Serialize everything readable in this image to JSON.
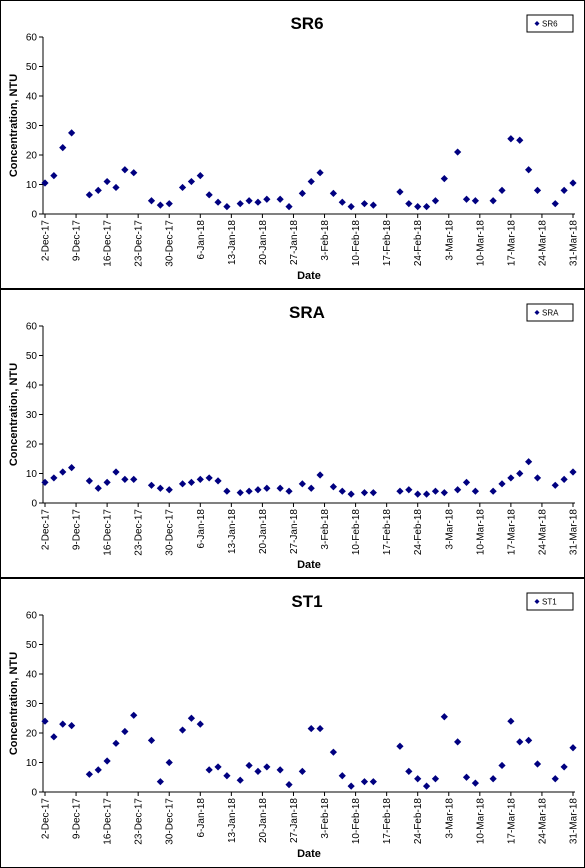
{
  "chart_data": [
    {
      "type": "scatter",
      "title": "SR6",
      "xlabel": "Date",
      "ylabel": "Concentration, NTU",
      "x": [
        "2017-12-02",
        "2017-12-04",
        "2017-12-06",
        "2017-12-08",
        "2017-12-12",
        "2017-12-14",
        "2017-12-16",
        "2017-12-18",
        "2017-12-20",
        "2017-12-22",
        "2017-12-26",
        "2017-12-28",
        "2017-12-30",
        "2018-01-02",
        "2018-01-04",
        "2018-01-06",
        "2018-01-08",
        "2018-01-10",
        "2018-01-12",
        "2018-01-15",
        "2018-01-17",
        "2018-01-19",
        "2018-01-21",
        "2018-01-24",
        "2018-01-26",
        "2018-01-29",
        "2018-01-31",
        "2018-02-02",
        "2018-02-05",
        "2018-02-07",
        "2018-02-09",
        "2018-02-12",
        "2018-02-14",
        "2018-02-20",
        "2018-02-22",
        "2018-02-24",
        "2018-02-26",
        "2018-02-28",
        "2018-03-02",
        "2018-03-05",
        "2018-03-07",
        "2018-03-09",
        "2018-03-13",
        "2018-03-15",
        "2018-03-17",
        "2018-03-19",
        "2018-03-21",
        "2018-03-23",
        "2018-03-27",
        "2018-03-29",
        "2018-03-31"
      ],
      "series": [
        {
          "name": "SR6",
          "color": "#000080",
          "values": [
            10.5,
            13,
            22.5,
            27.5,
            6.5,
            8,
            11,
            9,
            15,
            14,
            4.5,
            3,
            3.5,
            9,
            11,
            13,
            6.5,
            4,
            2.5,
            3.5,
            4.5,
            4,
            5,
            5,
            2.5,
            7,
            11,
            14,
            7,
            4,
            2.5,
            3.5,
            3,
            7.5,
            3.5,
            2.5,
            2.5,
            4.5,
            12,
            21,
            5,
            4.5,
            4.5,
            8,
            25.5,
            25,
            15,
            8,
            3.5,
            8,
            10.5
          ]
        }
      ],
      "xlim": [
        "2017-12-02",
        "2018-03-31"
      ],
      "xticks": [
        {
          "value": "2017-12-02",
          "label": "2-Dec-17"
        },
        {
          "value": "2017-12-09",
          "label": "9-Dec-17"
        },
        {
          "value": "2017-12-16",
          "label": "16-Dec-17"
        },
        {
          "value": "2017-12-23",
          "label": "23-Dec-17"
        },
        {
          "value": "2017-12-30",
          "label": "30-Dec-17"
        },
        {
          "value": "2018-01-06",
          "label": "6-Jan-18"
        },
        {
          "value": "2018-01-13",
          "label": "13-Jan-18"
        },
        {
          "value": "2018-01-20",
          "label": "20-Jan-18"
        },
        {
          "value": "2018-01-27",
          "label": "27-Jan-18"
        },
        {
          "value": "2018-02-03",
          "label": "3-Feb-18"
        },
        {
          "value": "2018-02-10",
          "label": "10-Feb-18"
        },
        {
          "value": "2018-02-17",
          "label": "17-Feb-18"
        },
        {
          "value": "2018-02-24",
          "label": "24-Feb-18"
        },
        {
          "value": "2018-03-03",
          "label": "3-Mar-18"
        },
        {
          "value": "2018-03-10",
          "label": "10-Mar-18"
        },
        {
          "value": "2018-03-17",
          "label": "17-Mar-18"
        },
        {
          "value": "2018-03-24",
          "label": "24-Mar-18"
        },
        {
          "value": "2018-03-31",
          "label": "31-Mar-18"
        }
      ],
      "ylim": [
        0,
        60
      ],
      "yticks": [
        0,
        10,
        20,
        30,
        40,
        50,
        60
      ],
      "legend": "top-right"
    },
    {
      "type": "scatter",
      "title": "SRA",
      "xlabel": "Date",
      "ylabel": "Concentration, NTU",
      "x": [
        "2017-12-02",
        "2017-12-04",
        "2017-12-06",
        "2017-12-08",
        "2017-12-12",
        "2017-12-14",
        "2017-12-16",
        "2017-12-18",
        "2017-12-20",
        "2017-12-22",
        "2017-12-26",
        "2017-12-28",
        "2017-12-30",
        "2018-01-02",
        "2018-01-04",
        "2018-01-06",
        "2018-01-08",
        "2018-01-10",
        "2018-01-12",
        "2018-01-15",
        "2018-01-17",
        "2018-01-19",
        "2018-01-21",
        "2018-01-24",
        "2018-01-26",
        "2018-01-29",
        "2018-01-31",
        "2018-02-02",
        "2018-02-05",
        "2018-02-07",
        "2018-02-09",
        "2018-02-12",
        "2018-02-14",
        "2018-02-20",
        "2018-02-22",
        "2018-02-24",
        "2018-02-26",
        "2018-02-28",
        "2018-03-02",
        "2018-03-05",
        "2018-03-07",
        "2018-03-09",
        "2018-03-13",
        "2018-03-15",
        "2018-03-17",
        "2018-03-19",
        "2018-03-21",
        "2018-03-23",
        "2018-03-27",
        "2018-03-29",
        "2018-03-31"
      ],
      "series": [
        {
          "name": "SRA",
          "color": "#000080",
          "values": [
            7,
            8.5,
            10.5,
            12,
            7.5,
            5,
            7,
            10.5,
            8,
            8,
            6,
            5,
            4.5,
            6.5,
            7,
            8,
            8.5,
            7.5,
            4,
            3.5,
            4,
            4.5,
            5,
            5,
            4,
            6.5,
            5,
            9.5,
            5.5,
            4,
            3,
            3.5,
            3.5,
            4,
            4.5,
            3,
            3,
            4,
            3.5,
            4.5,
            7,
            4,
            4,
            6.5,
            8.5,
            10,
            14,
            8.5,
            6,
            8,
            10.5
          ]
        }
      ],
      "xlim": [
        "2017-12-02",
        "2018-03-31"
      ],
      "xticks": [
        {
          "value": "2017-12-02",
          "label": "2-Dec-17"
        },
        {
          "value": "2017-12-09",
          "label": "9-Dec-17"
        },
        {
          "value": "2017-12-16",
          "label": "16-Dec-17"
        },
        {
          "value": "2017-12-23",
          "label": "23-Dec-17"
        },
        {
          "value": "2017-12-30",
          "label": "30-Dec-17"
        },
        {
          "value": "2018-01-06",
          "label": "6-Jan-18"
        },
        {
          "value": "2018-01-13",
          "label": "13-Jan-18"
        },
        {
          "value": "2018-01-20",
          "label": "20-Jan-18"
        },
        {
          "value": "2018-01-27",
          "label": "27-Jan-18"
        },
        {
          "value": "2018-02-03",
          "label": "3-Feb-18"
        },
        {
          "value": "2018-02-10",
          "label": "10-Feb-18"
        },
        {
          "value": "2018-02-17",
          "label": "17-Feb-18"
        },
        {
          "value": "2018-02-24",
          "label": "24-Feb-18"
        },
        {
          "value": "2018-03-03",
          "label": "3-Mar-18"
        },
        {
          "value": "2018-03-10",
          "label": "10-Mar-18"
        },
        {
          "value": "2018-03-17",
          "label": "17-Mar-18"
        },
        {
          "value": "2018-03-24",
          "label": "24-Mar-18"
        },
        {
          "value": "2018-03-31",
          "label": "31-Mar-18"
        }
      ],
      "ylim": [
        0,
        60
      ],
      "yticks": [
        0,
        10,
        20,
        30,
        40,
        50,
        60
      ],
      "legend": "top-right"
    },
    {
      "type": "scatter",
      "title": "ST1",
      "xlabel": "Date",
      "ylabel": "Concentration, NTU",
      "x": [
        "2017-12-02",
        "2017-12-04",
        "2017-12-06",
        "2017-12-08",
        "2017-12-12",
        "2017-12-14",
        "2017-12-16",
        "2017-12-18",
        "2017-12-20",
        "2017-12-22",
        "2017-12-26",
        "2017-12-28",
        "2017-12-30",
        "2018-01-02",
        "2018-01-04",
        "2018-01-06",
        "2018-01-08",
        "2018-01-10",
        "2018-01-12",
        "2018-01-15",
        "2018-01-17",
        "2018-01-19",
        "2018-01-21",
        "2018-01-24",
        "2018-01-26",
        "2018-01-29",
        "2018-01-31",
        "2018-02-02",
        "2018-02-05",
        "2018-02-07",
        "2018-02-09",
        "2018-02-12",
        "2018-02-14",
        "2018-02-20",
        "2018-02-22",
        "2018-02-24",
        "2018-02-26",
        "2018-02-28",
        "2018-03-02",
        "2018-03-05",
        "2018-03-07",
        "2018-03-09",
        "2018-03-13",
        "2018-03-15",
        "2018-03-17",
        "2018-03-19",
        "2018-03-21",
        "2018-03-23",
        "2018-03-27",
        "2018-03-29",
        "2018-03-31"
      ],
      "series": [
        {
          "name": "ST1",
          "color": "#000080",
          "values": [
            24,
            18.7,
            23,
            22.5,
            6,
            7.5,
            10.5,
            16.5,
            20.5,
            26,
            17.5,
            3.5,
            10,
            21,
            25,
            23,
            7.5,
            8.5,
            5.5,
            4,
            9,
            7,
            8.5,
            7.5,
            2.5,
            7,
            21.5,
            21.5,
            13.5,
            5.5,
            2,
            3.5,
            3.5,
            15.5,
            7,
            4.5,
            2,
            4.5,
            25.5,
            17,
            5,
            3,
            4.5,
            9,
            24,
            17,
            17.5,
            9.5,
            4.5,
            8.5,
            15
          ]
        }
      ],
      "xlim": [
        "2017-12-02",
        "2018-03-31"
      ],
      "xticks": [
        {
          "value": "2017-12-02",
          "label": "2-Dec-17"
        },
        {
          "value": "2017-12-09",
          "label": "9-Dec-17"
        },
        {
          "value": "2017-12-16",
          "label": "16-Dec-17"
        },
        {
          "value": "2017-12-23",
          "label": "23-Dec-17"
        },
        {
          "value": "2017-12-30",
          "label": "30-Dec-17"
        },
        {
          "value": "2018-01-06",
          "label": "6-Jan-18"
        },
        {
          "value": "2018-01-13",
          "label": "13-Jan-18"
        },
        {
          "value": "2018-01-20",
          "label": "20-Jan-18"
        },
        {
          "value": "2018-01-27",
          "label": "27-Jan-18"
        },
        {
          "value": "2018-02-03",
          "label": "3-Feb-18"
        },
        {
          "value": "2018-02-10",
          "label": "10-Feb-18"
        },
        {
          "value": "2018-02-17",
          "label": "17-Feb-18"
        },
        {
          "value": "2018-02-24",
          "label": "24-Feb-18"
        },
        {
          "value": "2018-03-03",
          "label": "3-Mar-18"
        },
        {
          "value": "2018-03-10",
          "label": "10-Mar-18"
        },
        {
          "value": "2018-03-17",
          "label": "17-Mar-18"
        },
        {
          "value": "2018-03-24",
          "label": "24-Mar-18"
        },
        {
          "value": "2018-03-31",
          "label": "31-Mar-18"
        }
      ],
      "ylim": [
        0,
        60
      ],
      "yticks": [
        0,
        10,
        20,
        30,
        40,
        50,
        60
      ],
      "legend": "top-right"
    }
  ]
}
